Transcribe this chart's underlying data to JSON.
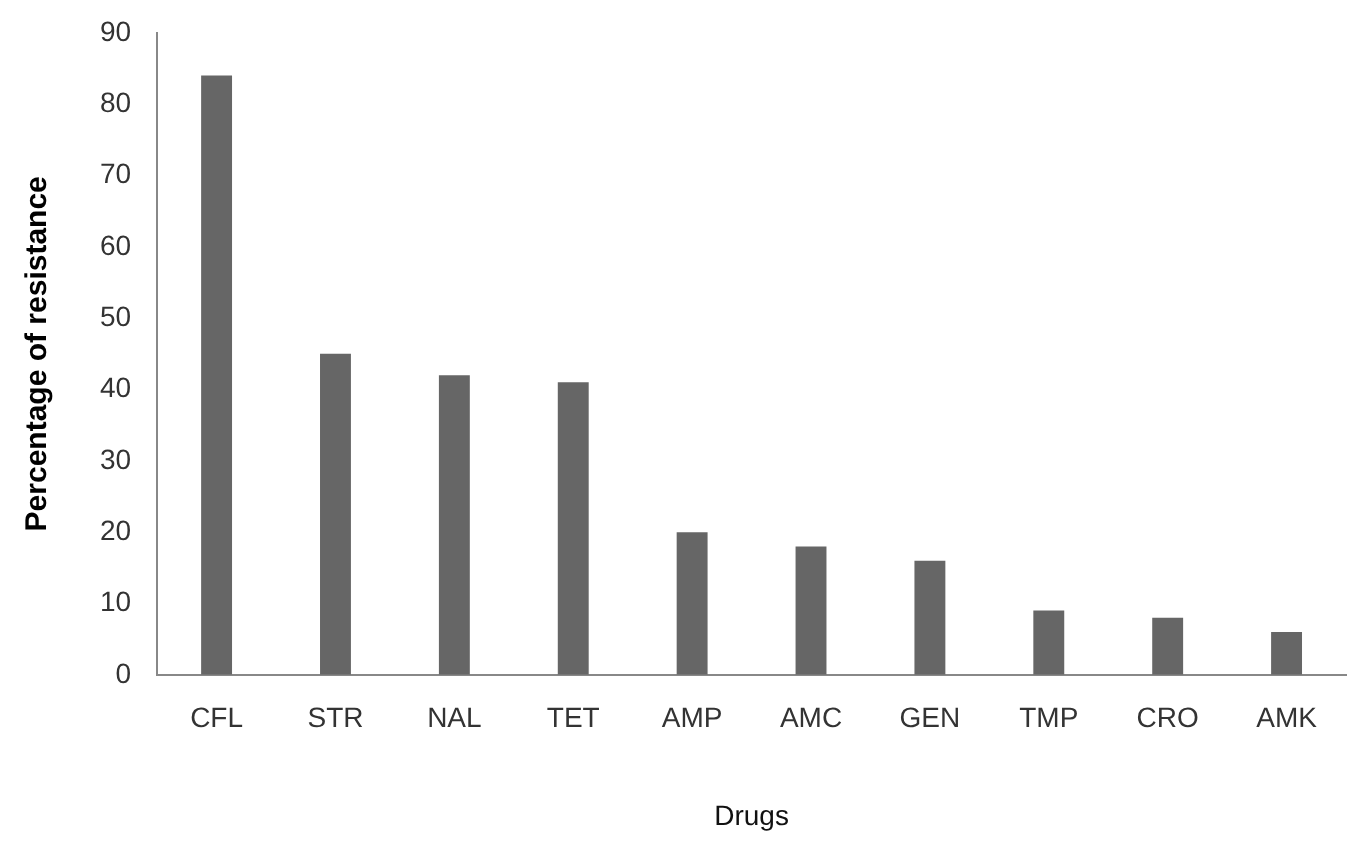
{
  "chart_data": {
    "type": "bar",
    "xlabel": "Drugs",
    "ylabel": "Percentage of resistance",
    "categories": [
      "CFL",
      "STR",
      "NAL",
      "TET",
      "AMP",
      "AMC",
      "GEN",
      "TMP",
      "CRO",
      "AMK"
    ],
    "values": [
      84,
      45,
      42,
      41,
      20,
      18,
      16,
      9,
      8,
      6
    ],
    "color": "#666666",
    "ylim": [
      0,
      90
    ],
    "yticks": [
      0,
      10,
      20,
      30,
      40,
      50,
      60,
      70,
      80,
      90
    ],
    "grid": false,
    "legend": false
  }
}
